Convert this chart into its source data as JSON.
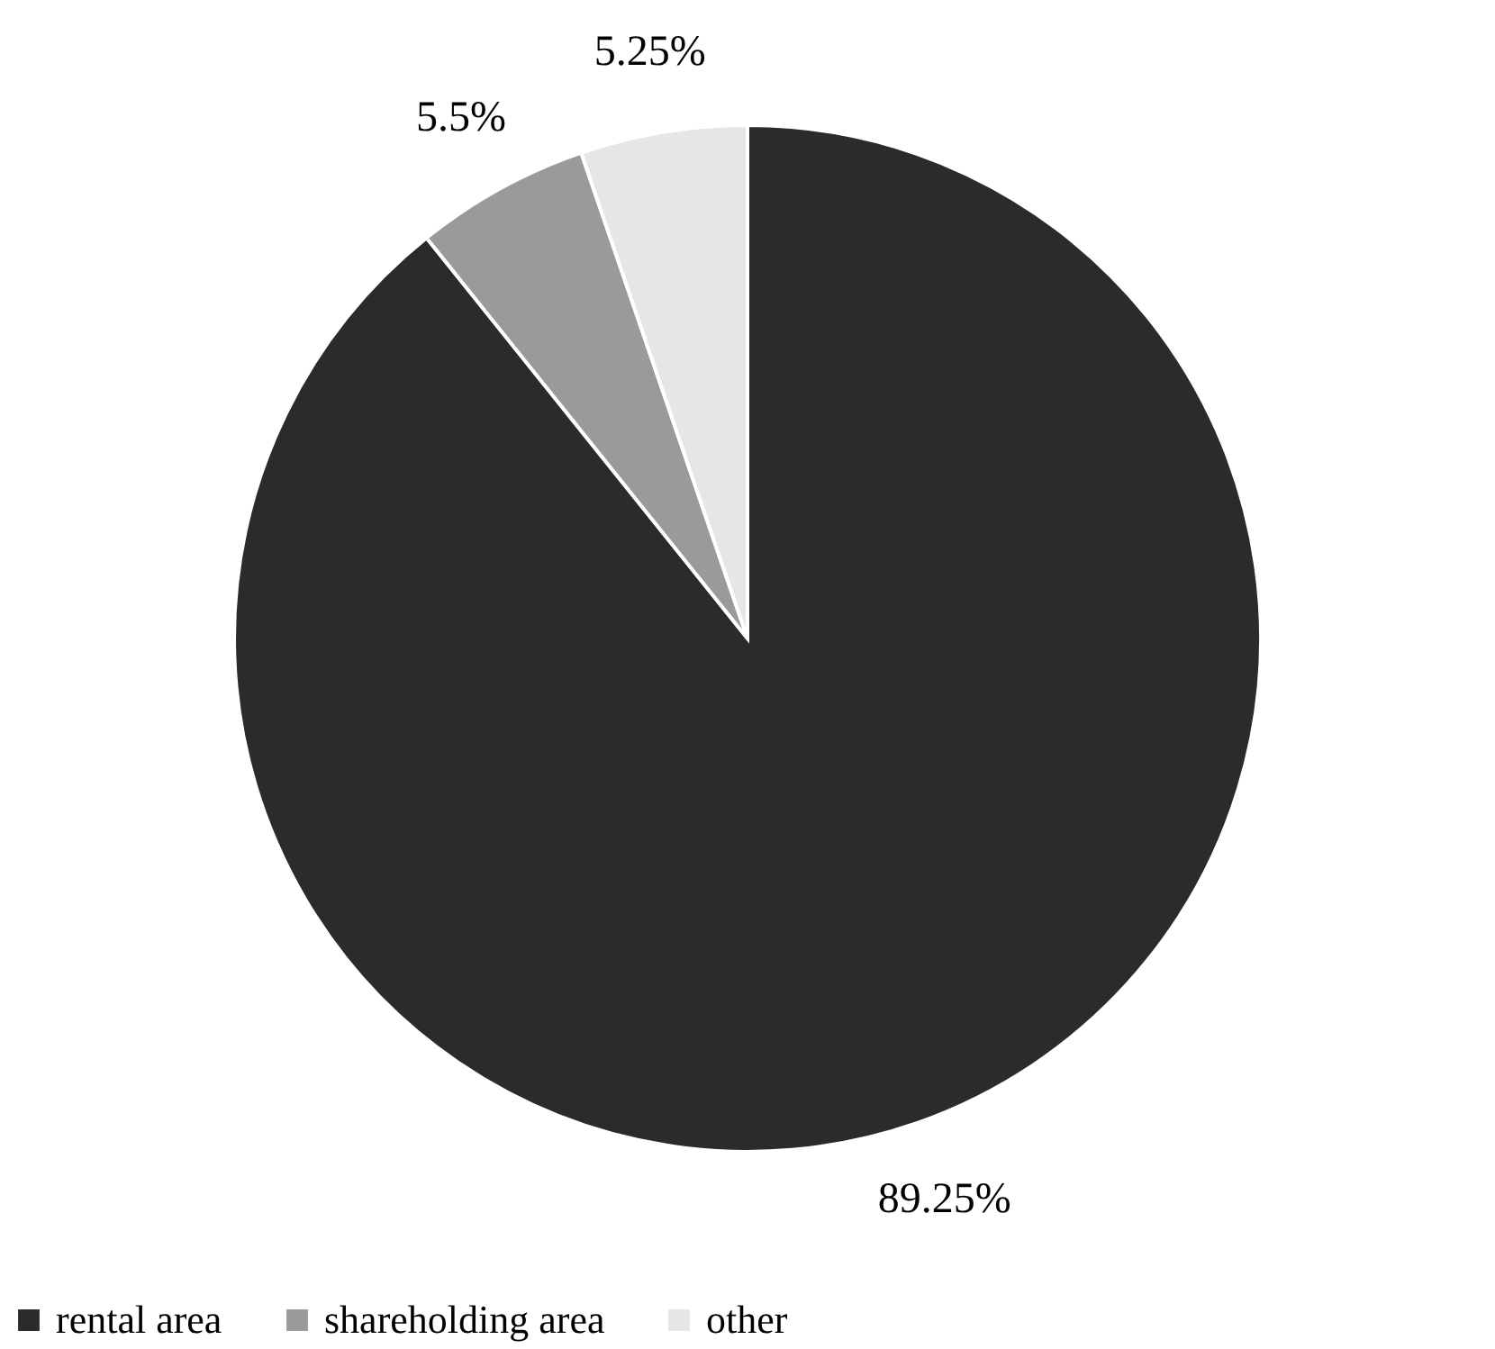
{
  "chart_data": {
    "type": "pie",
    "categories": [
      "rental area",
      "shareholding area",
      "other"
    ],
    "values": [
      89.25,
      5.5,
      5.25
    ],
    "colors": [
      "#2b2b2b",
      "#9a9a9a",
      "#e6e6e6"
    ],
    "value_labels": [
      "89.25%",
      "5.5%",
      "5.25%"
    ],
    "legend": "bottom"
  }
}
